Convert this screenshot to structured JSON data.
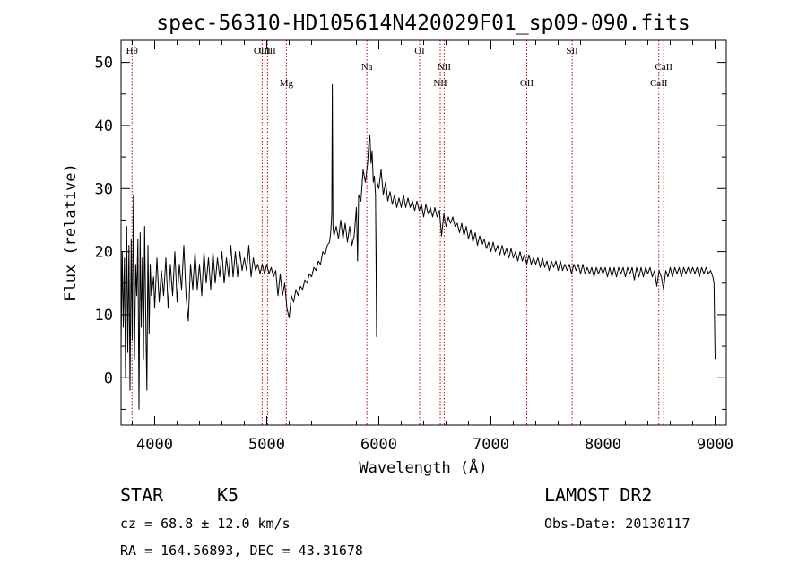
{
  "chart_data": {
    "type": "line",
    "title": "spec-56310-HD105614N420029F01_sp09-090.fits",
    "xlabel": "Wavelength (Å)",
    "ylabel": "Flux (relative)",
    "xlim": [
      3700,
      9100
    ],
    "ylim": [
      -7.5,
      53.5
    ],
    "xticks": [
      4000,
      5000,
      6000,
      7000,
      8000,
      9000
    ],
    "yticks": [
      0,
      10,
      20,
      30,
      40,
      50
    ],
    "series": [
      {
        "points": [
          [
            3700,
            5
          ],
          [
            3710,
            20
          ],
          [
            3720,
            8
          ],
          [
            3730,
            19
          ],
          [
            3740,
            0
          ],
          [
            3750,
            24
          ],
          [
            3760,
            4
          ],
          [
            3770,
            21
          ],
          [
            3780,
            -2
          ],
          [
            3790,
            22
          ],
          [
            3800,
            6
          ],
          [
            3810,
            29
          ],
          [
            3820,
            3
          ],
          [
            3830,
            18
          ],
          [
            3840,
            13
          ],
          [
            3850,
            22
          ],
          [
            3860,
            -5
          ],
          [
            3870,
            23
          ],
          [
            3880,
            8
          ],
          [
            3890,
            19
          ],
          [
            3900,
            3
          ],
          [
            3910,
            24
          ],
          [
            3920,
            10
          ],
          [
            3930,
            -2
          ],
          [
            3940,
            21
          ],
          [
            3950,
            7
          ],
          [
            3960,
            18
          ],
          [
            3970,
            13
          ],
          [
            3990,
            16
          ],
          [
            4000,
            11
          ],
          [
            4020,
            19
          ],
          [
            4040,
            12
          ],
          [
            4060,
            17
          ],
          [
            4080,
            13
          ],
          [
            4100,
            19
          ],
          [
            4120,
            11
          ],
          [
            4140,
            18
          ],
          [
            4160,
            13
          ],
          [
            4180,
            20
          ],
          [
            4200,
            12
          ],
          [
            4220,
            18
          ],
          [
            4240,
            14
          ],
          [
            4260,
            21
          ],
          [
            4280,
            13
          ],
          [
            4300,
            9
          ],
          [
            4320,
            18
          ],
          [
            4340,
            14
          ],
          [
            4360,
            20
          ],
          [
            4380,
            14
          ],
          [
            4400,
            18
          ],
          [
            4420,
            13
          ],
          [
            4440,
            20
          ],
          [
            4460,
            15
          ],
          [
            4480,
            19
          ],
          [
            4500,
            14
          ],
          [
            4520,
            20
          ],
          [
            4540,
            15
          ],
          [
            4560,
            19
          ],
          [
            4580,
            16
          ],
          [
            4600,
            20
          ],
          [
            4620,
            15
          ],
          [
            4640,
            19
          ],
          [
            4660,
            16
          ],
          [
            4680,
            21
          ],
          [
            4700,
            16
          ],
          [
            4720,
            20
          ],
          [
            4740,
            16
          ],
          [
            4760,
            20
          ],
          [
            4780,
            17
          ],
          [
            4800,
            19
          ],
          [
            4820,
            17
          ],
          [
            4840,
            21
          ],
          [
            4860,
            16
          ],
          [
            4880,
            19
          ],
          [
            4900,
            17
          ],
          [
            4920,
            18
          ],
          [
            4940,
            16.5
          ],
          [
            4960,
            18
          ],
          [
            4980,
            16.5
          ],
          [
            5000,
            18
          ],
          [
            5020,
            16.5
          ],
          [
            5040,
            17.5
          ],
          [
            5060,
            16
          ],
          [
            5080,
            17
          ],
          [
            5100,
            13
          ],
          [
            5120,
            16.5
          ],
          [
            5140,
            13
          ],
          [
            5160,
            15
          ],
          [
            5180,
            11
          ],
          [
            5200,
            9.5
          ],
          [
            5220,
            13
          ],
          [
            5240,
            12
          ],
          [
            5260,
            14
          ],
          [
            5280,
            13
          ],
          [
            5300,
            14.5
          ],
          [
            5320,
            14
          ],
          [
            5340,
            15.5
          ],
          [
            5360,
            15
          ],
          [
            5380,
            16.5
          ],
          [
            5400,
            16
          ],
          [
            5420,
            17.5
          ],
          [
            5440,
            17
          ],
          [
            5460,
            18.5
          ],
          [
            5480,
            18
          ],
          [
            5500,
            20
          ],
          [
            5520,
            19.5
          ],
          [
            5540,
            21
          ],
          [
            5560,
            21.5
          ],
          [
            5570,
            23
          ],
          [
            5580,
            26
          ],
          [
            5585,
            46.5
          ],
          [
            5590,
            24
          ],
          [
            5600,
            22.5
          ],
          [
            5620,
            24
          ],
          [
            5640,
            22
          ],
          [
            5660,
            25
          ],
          [
            5680,
            22
          ],
          [
            5700,
            24.5
          ],
          [
            5720,
            21.5
          ],
          [
            5740,
            24
          ],
          [
            5760,
            21
          ],
          [
            5780,
            22.5
          ],
          [
            5800,
            27
          ],
          [
            5810,
            18.5
          ],
          [
            5820,
            29
          ],
          [
            5840,
            28
          ],
          [
            5860,
            33
          ],
          [
            5880,
            31
          ],
          [
            5900,
            34
          ],
          [
            5910,
            37
          ],
          [
            5920,
            38.5
          ],
          [
            5930,
            34
          ],
          [
            5940,
            36
          ],
          [
            5950,
            31
          ],
          [
            5960,
            32
          ],
          [
            5970,
            29
          ],
          [
            5980,
            6.5
          ],
          [
            5985,
            31
          ],
          [
            6000,
            30
          ],
          [
            6020,
            33
          ],
          [
            6040,
            29
          ],
          [
            6060,
            31
          ],
          [
            6080,
            28
          ],
          [
            6100,
            29.5
          ],
          [
            6120,
            27.5
          ],
          [
            6140,
            29
          ],
          [
            6160,
            27
          ],
          [
            6180,
            28.5
          ],
          [
            6200,
            27
          ],
          [
            6220,
            29
          ],
          [
            6240,
            27
          ],
          [
            6260,
            28.5
          ],
          [
            6280,
            27
          ],
          [
            6300,
            28
          ],
          [
            6320,
            26.5
          ],
          [
            6340,
            28
          ],
          [
            6360,
            26.5
          ],
          [
            6380,
            27.5
          ],
          [
            6400,
            25.5
          ],
          [
            6420,
            27.5
          ],
          [
            6440,
            26
          ],
          [
            6460,
            27
          ],
          [
            6480,
            25.5
          ],
          [
            6500,
            27
          ],
          [
            6520,
            25.5
          ],
          [
            6540,
            26.5
          ],
          [
            6560,
            22.5
          ],
          [
            6580,
            26
          ],
          [
            6600,
            24
          ],
          [
            6620,
            25.5
          ],
          [
            6640,
            24.5
          ],
          [
            6660,
            25.5
          ],
          [
            6680,
            24
          ],
          [
            6700,
            24.5
          ],
          [
            6720,
            23
          ],
          [
            6740,
            24.5
          ],
          [
            6760,
            22.5
          ],
          [
            6780,
            24
          ],
          [
            6800,
            22
          ],
          [
            6820,
            23.5
          ],
          [
            6840,
            21.5
          ],
          [
            6860,
            23
          ],
          [
            6880,
            21
          ],
          [
            6900,
            22.5
          ],
          [
            6920,
            21
          ],
          [
            6940,
            22
          ],
          [
            6960,
            20.5
          ],
          [
            6980,
            21.5
          ],
          [
            7000,
            20
          ],
          [
            7020,
            21.5
          ],
          [
            7040,
            20
          ],
          [
            7060,
            21
          ],
          [
            7080,
            19.5
          ],
          [
            7100,
            21
          ],
          [
            7120,
            19.5
          ],
          [
            7140,
            20.5
          ],
          [
            7160,
            19
          ],
          [
            7180,
            20.5
          ],
          [
            7200,
            19
          ],
          [
            7220,
            20
          ],
          [
            7240,
            18.5
          ],
          [
            7260,
            20
          ],
          [
            7280,
            18.5
          ],
          [
            7300,
            19.5
          ],
          [
            7320,
            18
          ],
          [
            7340,
            19.5
          ],
          [
            7360,
            18
          ],
          [
            7380,
            19
          ],
          [
            7400,
            18
          ],
          [
            7420,
            19
          ],
          [
            7440,
            17.5
          ],
          [
            7460,
            19
          ],
          [
            7480,
            17.5
          ],
          [
            7500,
            18.5
          ],
          [
            7520,
            17
          ],
          [
            7540,
            18.5
          ],
          [
            7560,
            17.5
          ],
          [
            7580,
            18.5
          ],
          [
            7600,
            17
          ],
          [
            7620,
            18.5
          ],
          [
            7640,
            17
          ],
          [
            7660,
            18
          ],
          [
            7680,
            17
          ],
          [
            7700,
            18
          ],
          [
            7720,
            16.5
          ],
          [
            7740,
            18
          ],
          [
            7760,
            17
          ],
          [
            7780,
            18
          ],
          [
            7800,
            16.5
          ],
          [
            7820,
            18
          ],
          [
            7840,
            16.5
          ],
          [
            7860,
            17.5
          ],
          [
            7880,
            16.5
          ],
          [
            7900,
            17.5
          ],
          [
            7920,
            16
          ],
          [
            7940,
            17.5
          ],
          [
            7960,
            16.5
          ],
          [
            7980,
            17.5
          ],
          [
            8000,
            16.5
          ],
          [
            8020,
            17.5
          ],
          [
            8040,
            16
          ],
          [
            8060,
            17.5
          ],
          [
            8080,
            16
          ],
          [
            8100,
            17.5
          ],
          [
            8120,
            16
          ],
          [
            8140,
            17.5
          ],
          [
            8160,
            16.5
          ],
          [
            8180,
            17.5
          ],
          [
            8200,
            16
          ],
          [
            8220,
            17.5
          ],
          [
            8240,
            16.5
          ],
          [
            8260,
            17.5
          ],
          [
            8280,
            15.5
          ],
          [
            8300,
            17.5
          ],
          [
            8320,
            16
          ],
          [
            8340,
            17.5
          ],
          [
            8360,
            16
          ],
          [
            8380,
            17.5
          ],
          [
            8400,
            16.5
          ],
          [
            8420,
            17.5
          ],
          [
            8440,
            16
          ],
          [
            8460,
            17
          ],
          [
            8480,
            14.5
          ],
          [
            8500,
            17
          ],
          [
            8520,
            16
          ],
          [
            8540,
            14
          ],
          [
            8560,
            17
          ],
          [
            8580,
            16
          ],
          [
            8600,
            17.5
          ],
          [
            8620,
            16
          ],
          [
            8640,
            17.5
          ],
          [
            8660,
            16.5
          ],
          [
            8680,
            17.5
          ],
          [
            8700,
            16
          ],
          [
            8720,
            17.5
          ],
          [
            8740,
            16.5
          ],
          [
            8760,
            17.5
          ],
          [
            8780,
            16.5
          ],
          [
            8800,
            17.5
          ],
          [
            8820,
            16.5
          ],
          [
            8840,
            17.5
          ],
          [
            8860,
            16
          ],
          [
            8880,
            17.5
          ],
          [
            8900,
            16.5
          ],
          [
            8920,
            17.5
          ],
          [
            8940,
            16.5
          ],
          [
            8960,
            17
          ],
          [
            8980,
            16
          ],
          [
            8990,
            15
          ],
          [
            9000,
            3
          ]
        ]
      }
    ],
    "spectral_lines": [
      {
        "label": "Hθ",
        "wavelength": 3798,
        "row": "top"
      },
      {
        "label": "OIII",
        "wavelength": 4959,
        "row": "top"
      },
      {
        "label": "OIII",
        "wavelength": 5007,
        "row": "top"
      },
      {
        "label": "Mg",
        "wavelength": 5175,
        "row": "bottom"
      },
      {
        "label": "Na",
        "wavelength": 5893,
        "row": "middle"
      },
      {
        "label": "OI",
        "wavelength": 6364,
        "row": "top"
      },
      {
        "label": "NII",
        "wavelength": 6548,
        "row": "bottom"
      },
      {
        "label": "NII",
        "wavelength": 6583,
        "row": "middle"
      },
      {
        "label": "OII",
        "wavelength": 7320,
        "row": "bottom"
      },
      {
        "label": "SII",
        "wavelength": 7725,
        "row": "top"
      },
      {
        "label": "CaII",
        "wavelength": 8498,
        "row": "bottom"
      },
      {
        "label": "CaII",
        "wavelength": 8542,
        "row": "middle"
      }
    ],
    "line_color": "#000000",
    "marker_color": "#cc0000"
  },
  "info": {
    "class": "STAR",
    "subclass": "K5",
    "survey": "LAMOST DR2",
    "cz": "cz = 68.8 ± 12.0 km/s",
    "obs_date": "Obs-Date: 20130117",
    "coords": "RA = 164.56893, DEC =  43.31678"
  }
}
